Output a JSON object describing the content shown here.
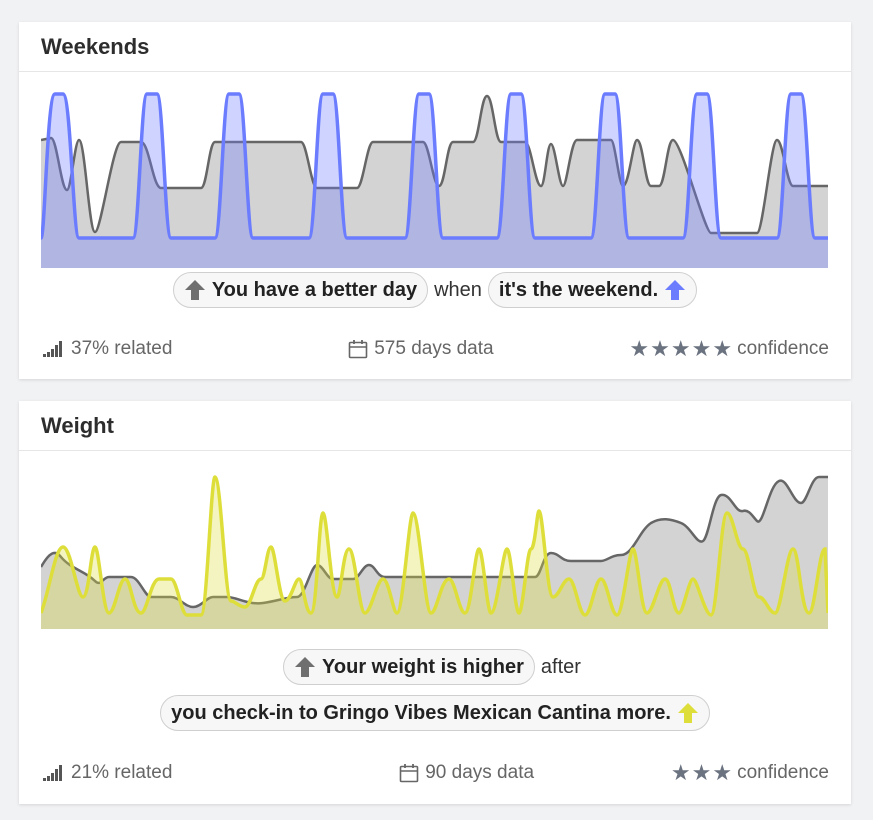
{
  "cards": [
    {
      "title": "Weekends",
      "cause_pill": "You have a better day",
      "joiner": "when",
      "effect_pill": "it's the weekend.",
      "related": "37% related",
      "days": "575 days data",
      "stars": 5,
      "confidence": "confidence",
      "accent_color": "#6b7cff",
      "arrow_left_icon": "arrow-up-icon",
      "arrow_right_icon": "arrow-up-icon"
    },
    {
      "title": "Weight",
      "cause_pill": "Your weight is higher",
      "joiner": "after",
      "effect_pill": "you check-in to Gringo Vibes Mexican Cantina more.",
      "related": "21% related",
      "days": "90 days data",
      "stars": 3,
      "confidence": "confidence",
      "accent_color": "#dede3a",
      "arrow_left_icon": "arrow-up-icon",
      "arrow_right_icon": "arrow-up-icon"
    }
  ]
}
